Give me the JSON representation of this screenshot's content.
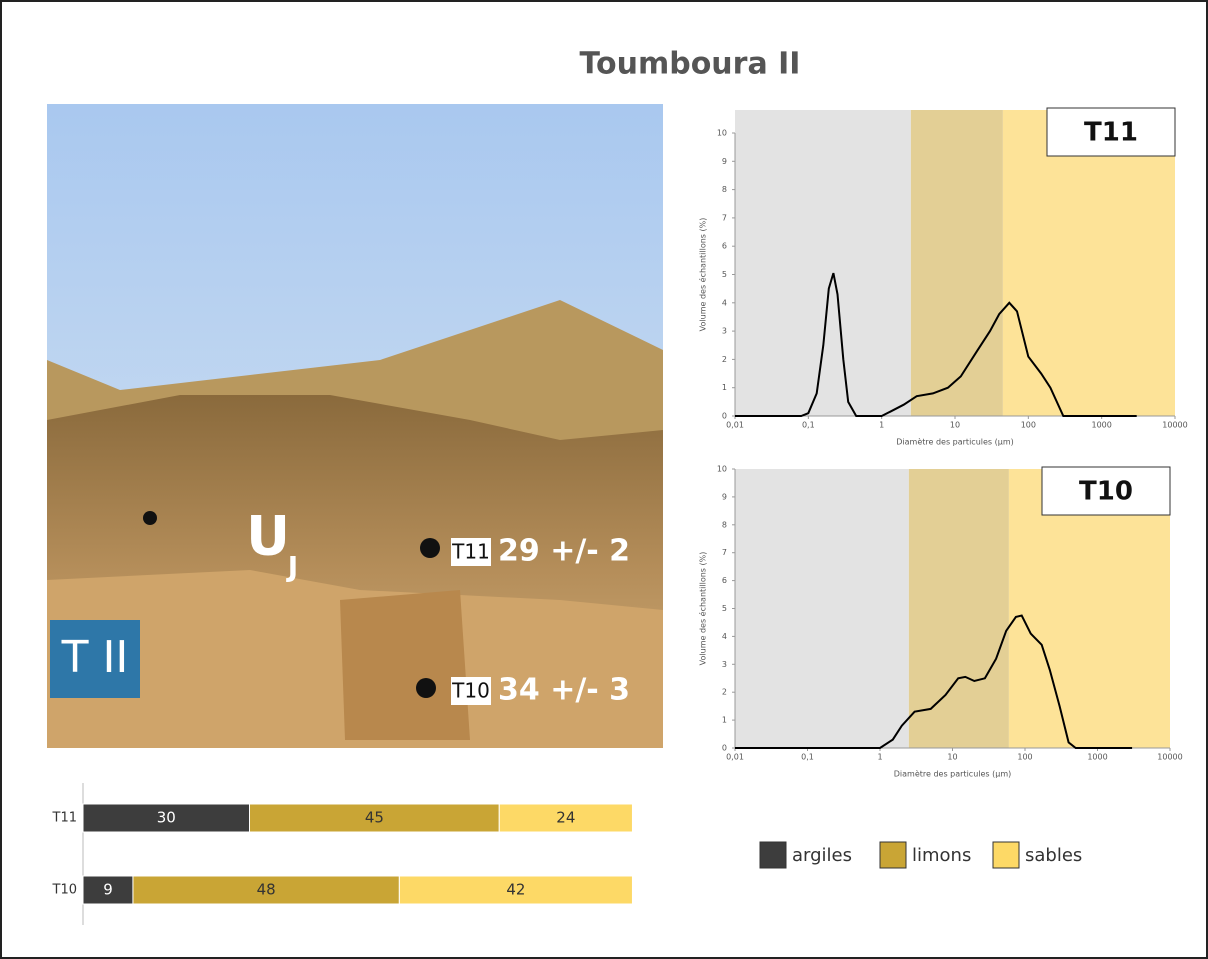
{
  "title": "Toumboura II",
  "photo": {
    "site_label": "T II",
    "unit_label": "U",
    "unit_subscript": "J",
    "samples": [
      {
        "id": "T11",
        "age": "29 +/- 2"
      },
      {
        "id": "T10",
        "age": "34 +/- 3"
      }
    ]
  },
  "chart_data": [
    {
      "type": "line",
      "title": "T11",
      "xlabel": "Diamètre des particules (µm)",
      "ylabel": "Volume des échantillons (%)",
      "log_x": true,
      "xlim": [
        0.01,
        10000
      ],
      "xticks": [
        {
          "value": 0.01,
          "label": "0,01"
        },
        {
          "value": 0.1,
          "label": "0,1"
        },
        1,
        10,
        100,
        1000,
        10000
      ],
      "ylim": [
        0,
        10
      ],
      "yticks": [
        0,
        1,
        2,
        3,
        4,
        5,
        6,
        7,
        8,
        9,
        10
      ],
      "color": "#000000",
      "bands": [
        {
          "from": 0.01,
          "to": 2.5,
          "color": "#e3e3e3"
        },
        {
          "from": 2.5,
          "to": 45,
          "color": "#e3cf95"
        },
        {
          "from": 45,
          "to": 10000,
          "color": "#fde398"
        }
      ],
      "x": [
        0.01,
        0.08,
        0.1,
        0.13,
        0.16,
        0.19,
        0.22,
        0.25,
        0.3,
        0.35,
        0.45,
        0.6,
        1,
        1.3,
        2,
        3,
        5,
        8,
        12,
        20,
        30,
        40,
        55,
        70,
        100,
        150,
        200,
        300,
        1000,
        3000
      ],
      "values": [
        0,
        0,
        0.1,
        0.8,
        2.5,
        4.5,
        5.05,
        4.3,
        2,
        0.5,
        0,
        0,
        0,
        0.15,
        0.4,
        0.7,
        0.8,
        1,
        1.4,
        2.3,
        3,
        3.6,
        4,
        3.7,
        2.1,
        1.5,
        1,
        0,
        0,
        0
      ]
    },
    {
      "type": "line",
      "title": "T10",
      "xlabel": "Diamètre des particules (µm)",
      "ylabel": "Volume des échantillons (%)",
      "log_x": true,
      "xlim": [
        0.01,
        10000
      ],
      "xticks": [
        {
          "value": 0.01,
          "label": "0,01"
        },
        {
          "value": 0.1,
          "label": "0,1"
        },
        1,
        10,
        100,
        1000,
        10000
      ],
      "ylim": [
        0,
        10
      ],
      "yticks": [
        0,
        1,
        2,
        3,
        4,
        5,
        6,
        7,
        8,
        9,
        10
      ],
      "color": "#000000",
      "bands": [
        {
          "from": 0.01,
          "to": 2.5,
          "color": "#e3e3e3"
        },
        {
          "from": 2.5,
          "to": 60,
          "color": "#e3cf95"
        },
        {
          "from": 60,
          "to": 10000,
          "color": "#fde398"
        }
      ],
      "x": [
        0.01,
        0.5,
        1,
        1.5,
        2,
        3,
        5,
        8,
        12,
        15,
        20,
        28,
        40,
        55,
        75,
        90,
        120,
        170,
        220,
        300,
        400,
        500,
        1000,
        3000
      ],
      "values": [
        0,
        0,
        0,
        0.3,
        0.8,
        1.3,
        1.4,
        1.9,
        2.5,
        2.55,
        2.4,
        2.5,
        3.2,
        4.2,
        4.7,
        4.75,
        4.1,
        3.7,
        2.8,
        1.5,
        0.2,
        0,
        0,
        0
      ]
    },
    {
      "type": "stacked_barh",
      "categories": [
        "T11",
        "T10"
      ],
      "xlim": [
        0,
        100
      ],
      "series": [
        {
          "name": "argiles",
          "color": "#3d3d3d",
          "values": [
            30,
            9
          ]
        },
        {
          "name": "limons",
          "color": "#c9a535",
          "values": [
            45,
            48
          ]
        },
        {
          "name": "sables",
          "color": "#fdd966",
          "values": [
            24,
            42
          ]
        }
      ]
    }
  ]
}
